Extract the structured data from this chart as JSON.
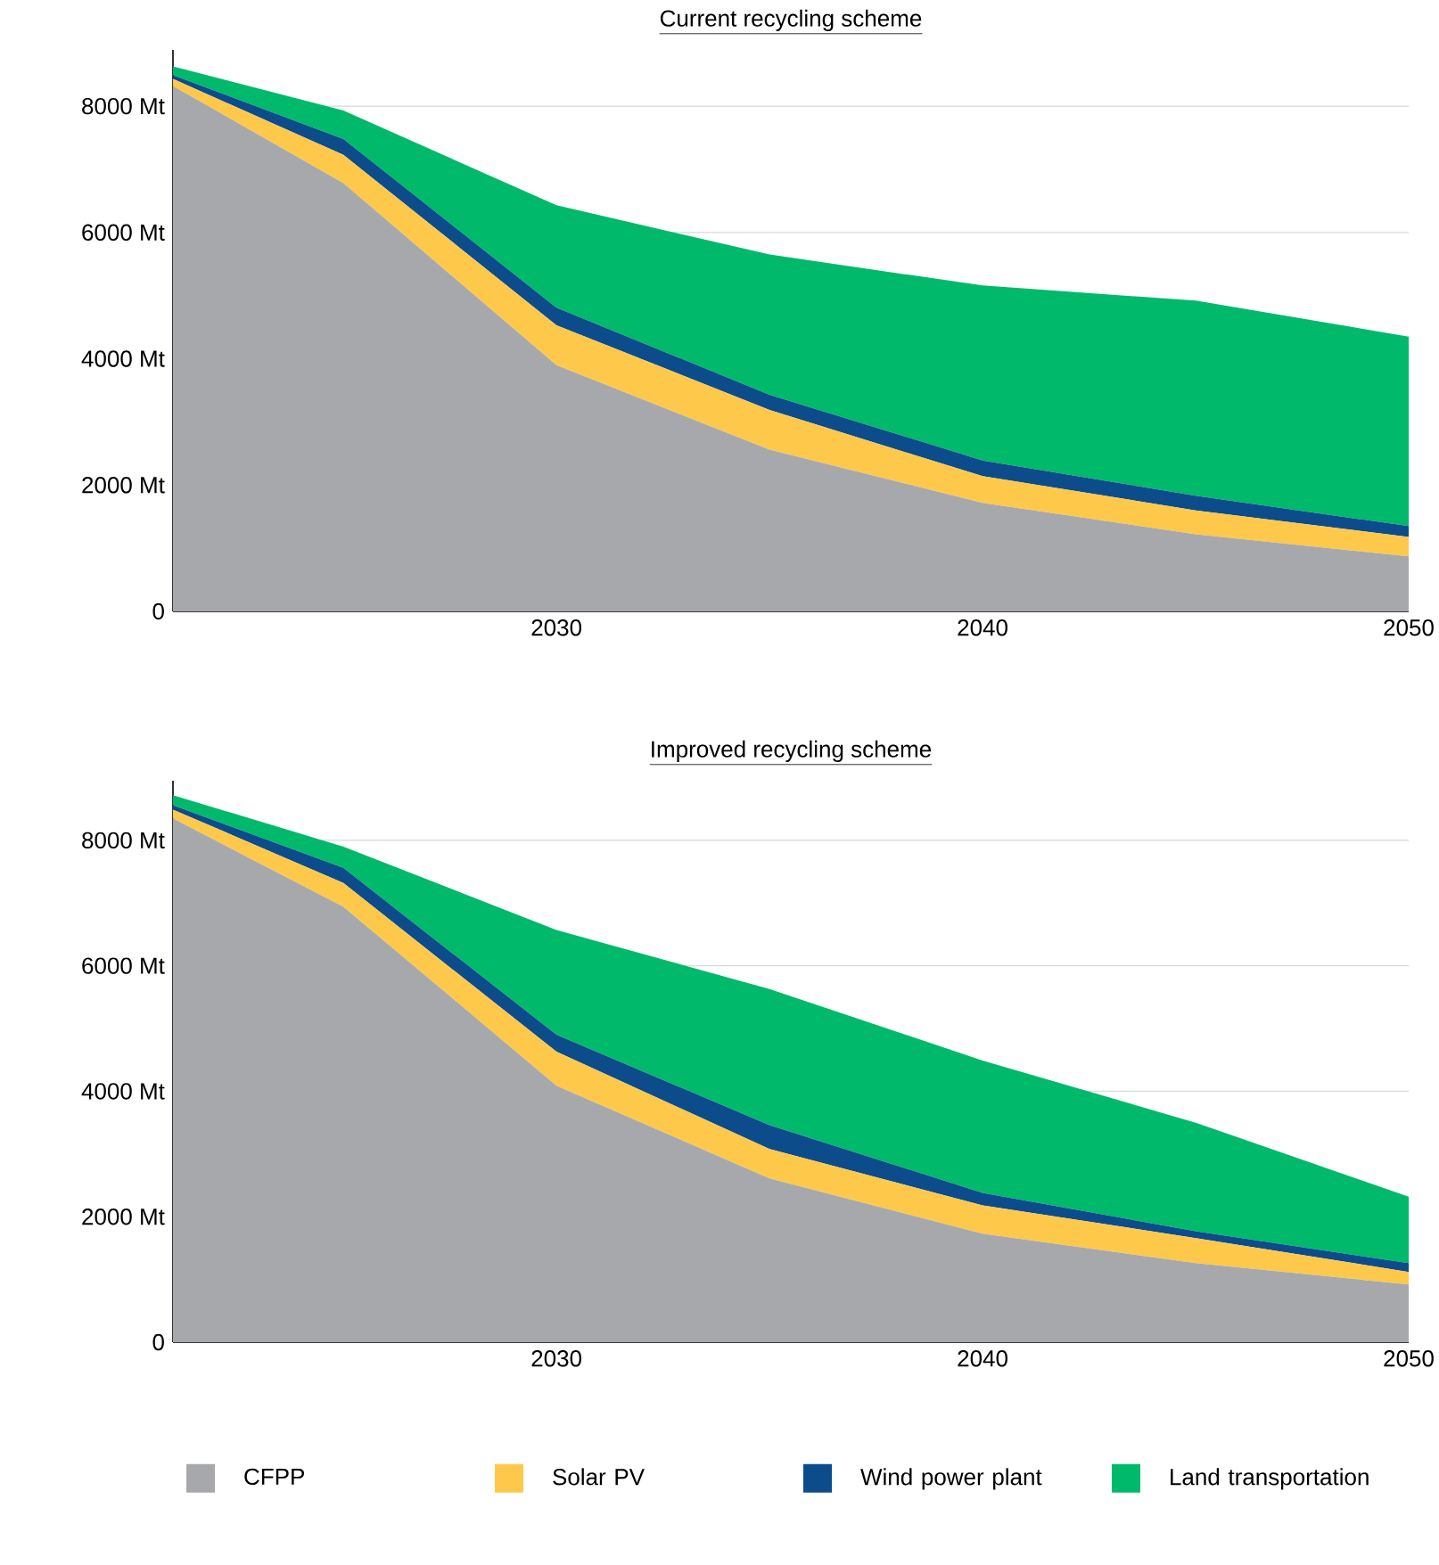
{
  "chart_data": [
    {
      "type": "area",
      "title": "Current recycling scheme",
      "stacked": true,
      "grid": "y",
      "legend": false,
      "x": [
        2021,
        2025,
        2030,
        2035,
        2040,
        2045,
        2050
      ],
      "series": [
        {
          "color": "#a7a8ab",
          "values": [
            8320,
            6780,
            3900,
            2560,
            1720,
            1220,
            870
          ]
        },
        {
          "color": "#fec94a",
          "values": [
            110,
            450,
            630,
            630,
            420,
            380,
            310
          ]
        },
        {
          "color": "#0d4c8b",
          "values": [
            60,
            250,
            280,
            240,
            250,
            230,
            170
          ]
        },
        {
          "color": "#00b96b",
          "values": [
            140,
            450,
            1620,
            2220,
            2770,
            3090,
            3000
          ]
        }
      ],
      "xlim": [
        2021,
        2050
      ],
      "xticks": [
        2030,
        2040,
        2050
      ],
      "ylim": [
        0,
        8890
      ],
      "yticks": [
        {
          "value": 0,
          "label": "0"
        },
        {
          "value": 2000,
          "label": "2000 Mt"
        },
        {
          "value": 4000,
          "label": "4000 Mt"
        },
        {
          "value": 6000,
          "label": "6000 Mt"
        },
        {
          "value": 8000,
          "label": "8000 Mt"
        }
      ]
    },
    {
      "type": "area",
      "title": "Improved recycling scheme",
      "stacked": true,
      "grid": "y",
      "legend": "bottom",
      "x": [
        2021,
        2025,
        2030,
        2035,
        2040,
        2045,
        2050
      ],
      "series": [
        {
          "name": "CFPP",
          "color": "#a7a8ab",
          "values": [
            8350,
            6940,
            4090,
            2610,
            1730,
            1260,
            920
          ]
        },
        {
          "name": "Solar PV",
          "color": "#fec94a",
          "values": [
            140,
            380,
            540,
            470,
            450,
            400,
            200
          ]
        },
        {
          "name": "Wind power plant",
          "color": "#0d4c8b",
          "values": [
            70,
            240,
            270,
            380,
            200,
            110,
            140
          ]
        },
        {
          "name": "Land transportation",
          "color": "#00b96b",
          "values": [
            160,
            340,
            1670,
            2170,
            2110,
            1730,
            1060
          ]
        }
      ],
      "xlim": [
        2021,
        2050
      ],
      "xticks": [
        2030,
        2040,
        2050
      ],
      "ylim": [
        0,
        8950
      ],
      "yticks": [
        {
          "value": 0,
          "label": "0"
        },
        {
          "value": 2000,
          "label": "2000 Mt"
        },
        {
          "value": 4000,
          "label": "4000 Mt"
        },
        {
          "value": 6000,
          "label": "6000 Mt"
        },
        {
          "value": 8000,
          "label": "8000 Mt"
        }
      ]
    }
  ]
}
